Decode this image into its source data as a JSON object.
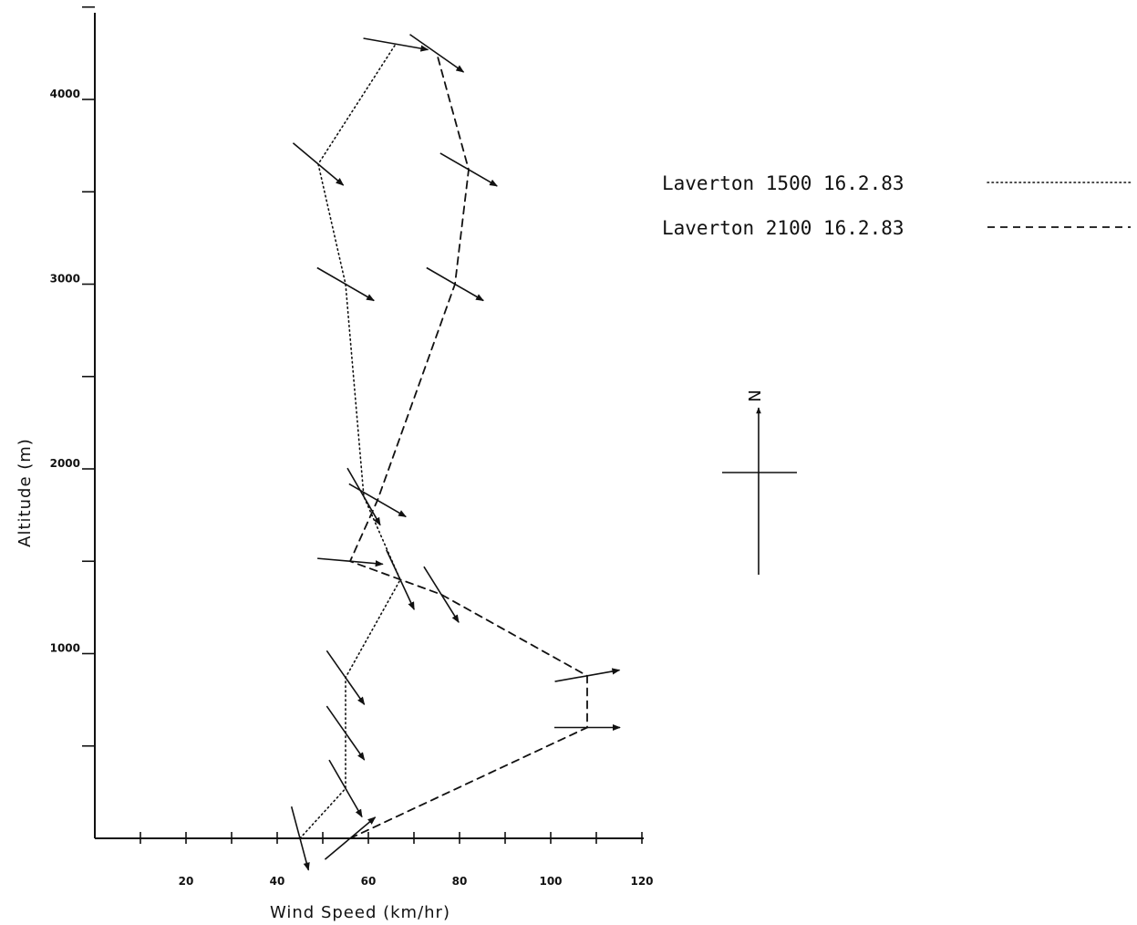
{
  "chart_data": {
    "type": "line",
    "xlabel": "Wind Speed (km/hr)",
    "ylabel": "Altitude (m)",
    "xlim": [
      0,
      120
    ],
    "ylim": [
      0,
      4500
    ],
    "x_ticks": [
      20,
      40,
      60,
      80,
      100,
      120
    ],
    "y_ticks": [
      1000,
      2000,
      3000,
      4000
    ],
    "grid": false,
    "legend_position": "top-right",
    "series": [
      {
        "name": "Laverton 1500 16.2.83",
        "style": "dotted",
        "points": [
          {
            "speed": 45,
            "altitude": 0,
            "direction_deg": 165
          },
          {
            "speed": 55,
            "altitude": 270,
            "direction_deg": 150
          },
          {
            "speed": 55,
            "altitude": 570,
            "direction_deg": 145
          },
          {
            "speed": 55,
            "altitude": 870,
            "direction_deg": 145
          },
          {
            "speed": 67,
            "altitude": 1400,
            "direction_deg": 155
          },
          {
            "speed": 59,
            "altitude": 1850,
            "direction_deg": 150
          },
          {
            "speed": 55,
            "altitude": 3000,
            "direction_deg": 120
          },
          {
            "speed": 49,
            "altitude": 3650,
            "direction_deg": 130
          },
          {
            "speed": 66,
            "altitude": 4300,
            "direction_deg": 100
          }
        ]
      },
      {
        "name": "Laverton 2100 16.2.83",
        "style": "dashed",
        "points": [
          {
            "speed": 56,
            "altitude": 0,
            "direction_deg": 50
          },
          {
            "speed": 108,
            "altitude": 600,
            "direction_deg": 90
          },
          {
            "speed": 108,
            "altitude": 880,
            "direction_deg": 80
          },
          {
            "speed": 76,
            "altitude": 1320,
            "direction_deg": 148
          },
          {
            "speed": 56,
            "altitude": 1500,
            "direction_deg": 95
          },
          {
            "speed": 62,
            "altitude": 1830,
            "direction_deg": 120
          },
          {
            "speed": 79,
            "altitude": 3000,
            "direction_deg": 120
          },
          {
            "speed": 82,
            "altitude": 3620,
            "direction_deg": 120
          },
          {
            "speed": 75,
            "altitude": 4250,
            "direction_deg": 125
          }
        ]
      }
    ]
  },
  "compass": {
    "label": "N"
  }
}
